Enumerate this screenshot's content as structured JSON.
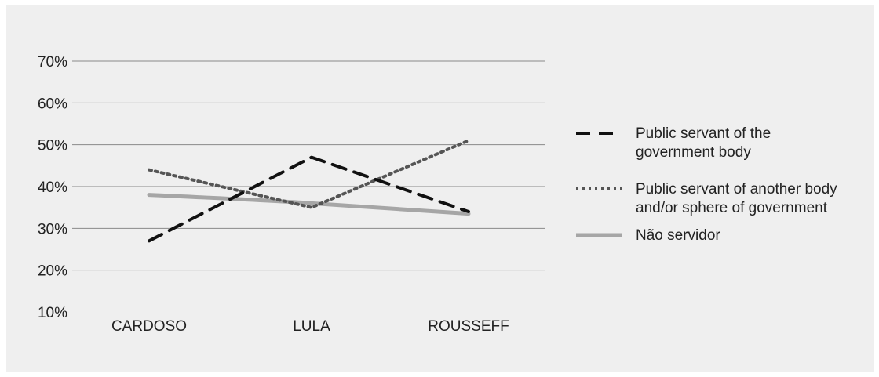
{
  "chart_data": {
    "type": "line",
    "categories": [
      "CARDOSO",
      "LULA",
      "ROUSSEFF"
    ],
    "y_ticks": [
      "70%",
      "60%",
      "50%",
      "40%",
      "30%",
      "20%",
      "10%"
    ],
    "y_tick_values": [
      70,
      60,
      50,
      40,
      30,
      20,
      10
    ],
    "ylim": [
      10,
      70
    ],
    "grid": true,
    "legend_position": "right",
    "series": [
      {
        "name_lines": [
          "Public servant of the",
          "government body"
        ],
        "values": [
          27,
          47,
          34
        ],
        "style": "dashed",
        "color": "#111111"
      },
      {
        "name_lines": [
          "Public servant of another body",
          "and/or sphere of government"
        ],
        "values": [
          44,
          35,
          51
        ],
        "style": "dotted",
        "color": "#555555"
      },
      {
        "name_lines": [
          "Não servidor"
        ],
        "values": [
          38,
          36,
          33.5
        ],
        "style": "solid",
        "color": "#a6a6a6"
      }
    ]
  }
}
